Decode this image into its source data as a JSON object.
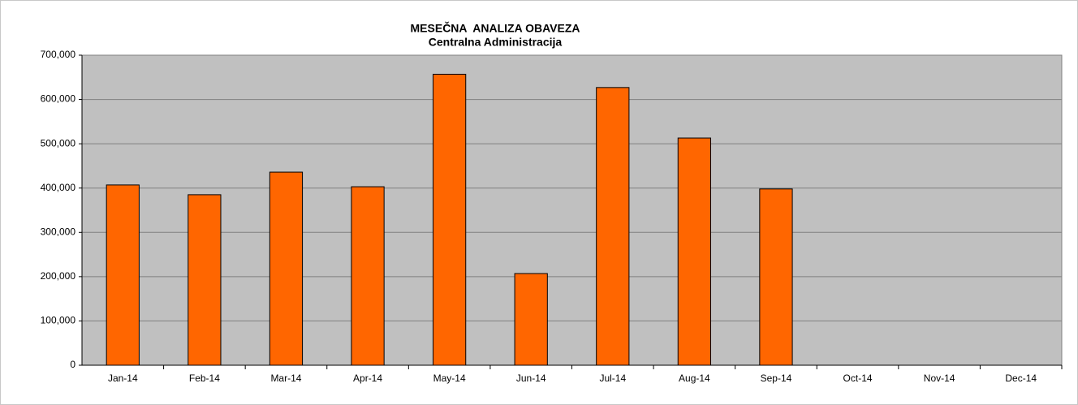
{
  "chart_data": {
    "type": "bar",
    "title": "MESEČNA  ANALIZA OBAVEZA",
    "subtitle": "Centralna Administracija",
    "categories": [
      "Jan-14",
      "Feb-14",
      "Mar-14",
      "Apr-14",
      "May-14",
      "Jun-14",
      "Jul-14",
      "Aug-14",
      "Sep-14",
      "Oct-14",
      "Nov-14",
      "Dec-14"
    ],
    "values": [
      407000,
      385000,
      436000,
      403000,
      657000,
      207000,
      627000,
      513000,
      398000,
      null,
      null,
      null
    ],
    "color": "#ff6600",
    "ylim": [
      0,
      700000
    ],
    "yticks": [
      0,
      {
        "value": 100000,
        "label": "100,000"
      },
      {
        "value": 200000,
        "label": "200,000"
      },
      {
        "value": 300000,
        "label": "300,000"
      },
      {
        "value": 400000,
        "label": "400,000"
      },
      {
        "value": 500000,
        "label": "500,000"
      },
      {
        "value": 600000,
        "label": "600,000"
      },
      {
        "value": 700000,
        "label": "700,000"
      }
    ],
    "grid": true
  }
}
